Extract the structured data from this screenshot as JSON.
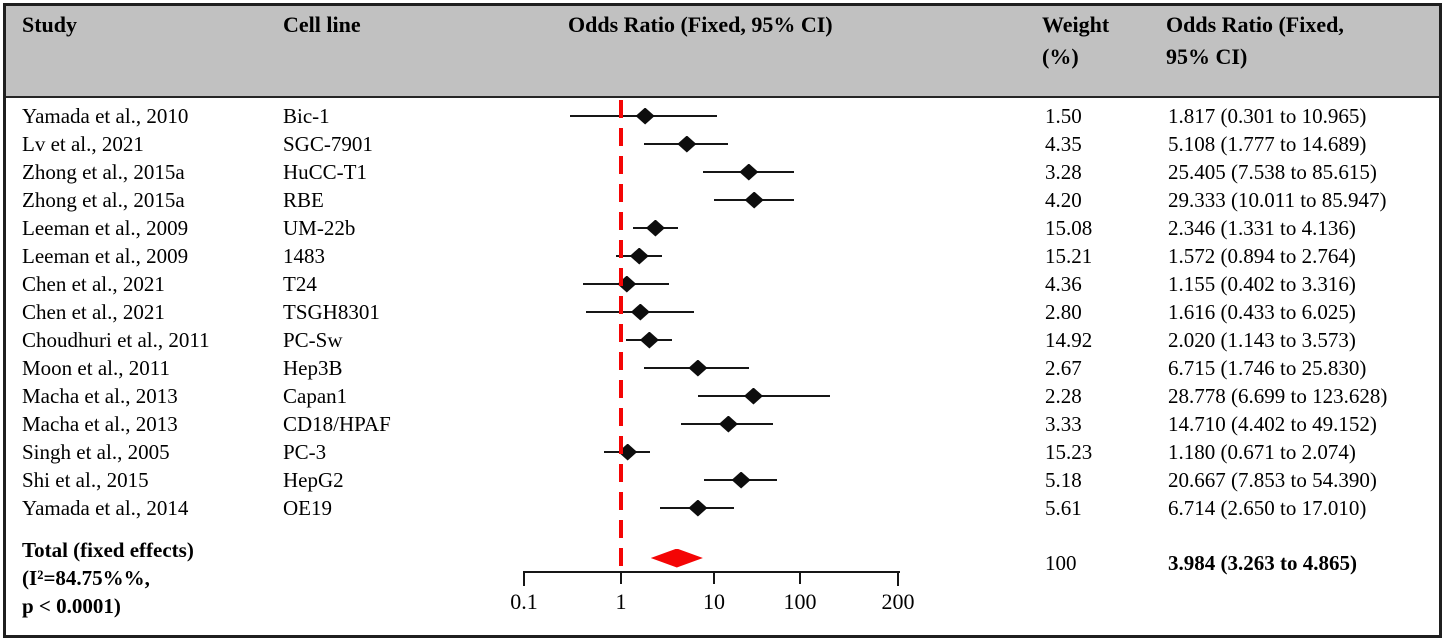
{
  "header": {
    "study": "Study",
    "cell_line": "Cell line",
    "or_plot": "Odds Ratio (Fixed, 95% CI)",
    "weight_line1": "Weight",
    "weight_line2": "(%)",
    "or_col_line1": "Odds Ratio (Fixed,",
    "or_col_line2": "95% CI)"
  },
  "chart_data": {
    "type": "forest",
    "x_axis": {
      "scale": "log",
      "ticks": [
        0.1,
        1,
        10,
        100,
        200
      ],
      "tick_labels": [
        "0.1",
        "1",
        "10",
        "100",
        "200"
      ],
      "reference_line": 1
    },
    "studies": [
      {
        "study": "Yamada et al., 2010",
        "cell_line": "Bic-1",
        "or": 1.817,
        "ci_low": 0.301,
        "ci_high": 10.965,
        "weight": "1.50",
        "or_text": "1.817 (0.301 to 10.965)"
      },
      {
        "study": "Lv et al., 2021",
        "cell_line": "SGC-7901",
        "or": 5.108,
        "ci_low": 1.777,
        "ci_high": 14.689,
        "weight": "4.35",
        "or_text": "5.108 (1.777 to 14.689)"
      },
      {
        "study": "Zhong et al., 2015a",
        "cell_line": "HuCC-T1",
        "or": 25.405,
        "ci_low": 7.538,
        "ci_high": 85.615,
        "weight": "3.28",
        "or_text": "25.405 (7.538 to 85.615)"
      },
      {
        "study": "Zhong et al., 2015a",
        "cell_line": "RBE",
        "or": 29.333,
        "ci_low": 10.011,
        "ci_high": 85.947,
        "weight": "4.20",
        "or_text": "29.333 (10.011 to 85.947)"
      },
      {
        "study": "Leeman et al., 2009",
        "cell_line": "UM-22b",
        "or": 2.346,
        "ci_low": 1.331,
        "ci_high": 4.136,
        "weight": "15.08",
        "or_text": "2.346 (1.331 to 4.136)"
      },
      {
        "study": "Leeman et al., 2009",
        "cell_line": "1483",
        "or": 1.572,
        "ci_low": 0.894,
        "ci_high": 2.764,
        "weight": "15.21",
        "or_text": "1.572 (0.894 to 2.764)"
      },
      {
        "study": "Chen et al., 2021",
        "cell_line": "T24",
        "or": 1.155,
        "ci_low": 0.402,
        "ci_high": 3.316,
        "weight": "4.36",
        "or_text": "1.155 (0.402 to 3.316)"
      },
      {
        "study": "Chen et al., 2021",
        "cell_line": "TSGH8301",
        "or": 1.616,
        "ci_low": 0.433,
        "ci_high": 6.025,
        "weight": "2.80",
        "or_text": "1.616 (0.433 to 6.025)"
      },
      {
        "study": "Choudhuri et al., 2011",
        "cell_line": "PC-Sw",
        "or": 2.02,
        "ci_low": 1.143,
        "ci_high": 3.573,
        "weight": "14.92",
        "or_text": "2.020 (1.143 to 3.573)"
      },
      {
        "study": "Moon et al., 2011",
        "cell_line": "Hep3B",
        "or": 6.715,
        "ci_low": 1.746,
        "ci_high": 25.83,
        "weight": "2.67",
        "or_text": "6.715 (1.746 to 25.830)"
      },
      {
        "study": "Macha et al., 2013",
        "cell_line": "Capan1",
        "or": 28.778,
        "ci_low": 6.699,
        "ci_high": 123.628,
        "weight": "2.28",
        "or_text": "28.778 (6.699 to 123.628)"
      },
      {
        "study": "Macha et al., 2013",
        "cell_line": "CD18/HPAF",
        "or": 14.71,
        "ci_low": 4.402,
        "ci_high": 49.152,
        "weight": "3.33",
        "or_text": "14.710 (4.402 to 49.152)"
      },
      {
        "study": "Singh et al., 2005",
        "cell_line": "PC-3",
        "or": 1.18,
        "ci_low": 0.671,
        "ci_high": 2.074,
        "weight": "15.23",
        "or_text": "1.180 (0.671 to 2.074)"
      },
      {
        "study": "Shi et al., 2015",
        "cell_line": "HepG2",
        "or": 20.667,
        "ci_low": 7.853,
        "ci_high": 54.39,
        "weight": "5.18",
        "or_text": "20.667 (7.853 to 54.390)"
      },
      {
        "study": "Yamada et al., 2014",
        "cell_line": "OE19",
        "or": 6.714,
        "ci_low": 2.65,
        "ci_high": 17.01,
        "weight": "5.61",
        "or_text": "6.714 (2.650 to 17.010)"
      }
    ],
    "total": {
      "label_line1": "Total (fixed effects)",
      "label_line2": "(I²=84.75%%,",
      "label_line3": "p < 0.0001)",
      "or": 3.984,
      "ci_low": 3.263,
      "ci_high": 4.865,
      "weight": "100",
      "or_text": "3.984 (3.263 to 4.865)"
    },
    "colors": {
      "marker": "#0d0d0d",
      "reference_line": "#f40505",
      "total_diamond": "#f40505",
      "header_bg": "#c1c1c1",
      "border": "#1f1f1f"
    }
  }
}
